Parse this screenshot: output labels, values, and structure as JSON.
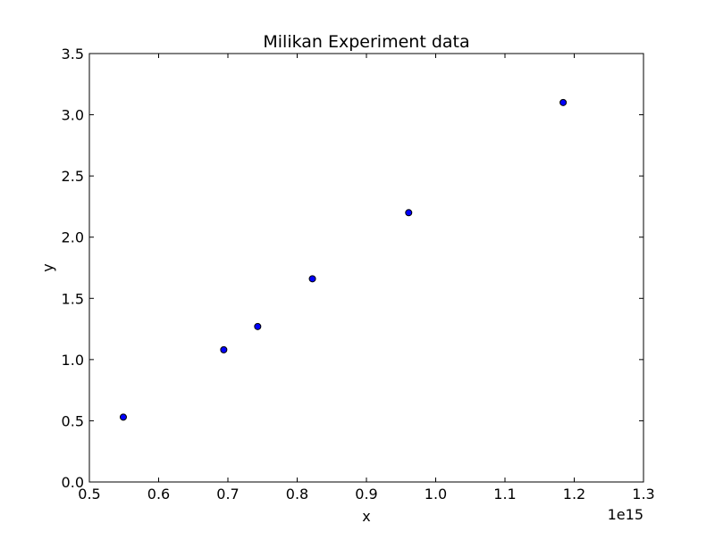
{
  "chart_data": {
    "type": "scatter",
    "title": "Milikan Experiment data",
    "xlabel": "x",
    "ylabel": "y",
    "x_offset_label": "1e15",
    "xlim": [
      0.5,
      1.3
    ],
    "ylim": [
      0.0,
      3.5
    ],
    "x_ticks": [
      0.5,
      0.6,
      0.7,
      0.8,
      0.9,
      1.0,
      1.1,
      1.2,
      1.3
    ],
    "x_tick_labels": [
      "0.5",
      "0.6",
      "0.7",
      "0.8",
      "0.9",
      "1.0",
      "1.1",
      "1.2",
      "1.3"
    ],
    "y_ticks": [
      0.0,
      0.5,
      1.0,
      1.5,
      2.0,
      2.5,
      3.0,
      3.5
    ],
    "y_tick_labels": [
      "0.0",
      "0.5",
      "1.0",
      "1.5",
      "2.0",
      "2.5",
      "3.0",
      "3.5"
    ],
    "grid": false,
    "marker_color": "#0000ff",
    "marker_edge_color": "#000000",
    "points": [
      {
        "x": 0.549,
        "y": 0.53
      },
      {
        "x": 0.694,
        "y": 1.08
      },
      {
        "x": 0.743,
        "y": 1.27
      },
      {
        "x": 0.822,
        "y": 1.66
      },
      {
        "x": 0.961,
        "y": 2.2
      },
      {
        "x": 1.184,
        "y": 3.1
      }
    ]
  }
}
